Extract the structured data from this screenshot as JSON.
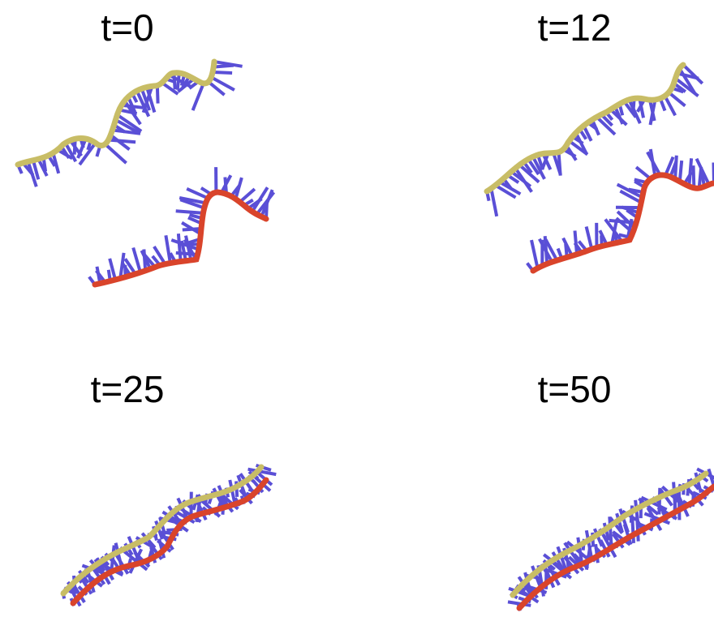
{
  "colors": {
    "background": "#ffffff",
    "strand_upper": "#c8bd66",
    "strand_lower": "#d9442b",
    "base_sticks": "#5a4fd6",
    "title": "#000000"
  },
  "panels": [
    {
      "id": "p0",
      "title": "t=0",
      "state": "separated"
    },
    {
      "id": "p12",
      "title": "t=12",
      "state": "separated"
    },
    {
      "id": "p25",
      "title": "t=25",
      "state": "paired"
    },
    {
      "id": "p50",
      "title": "t=50",
      "state": "paired"
    }
  ]
}
